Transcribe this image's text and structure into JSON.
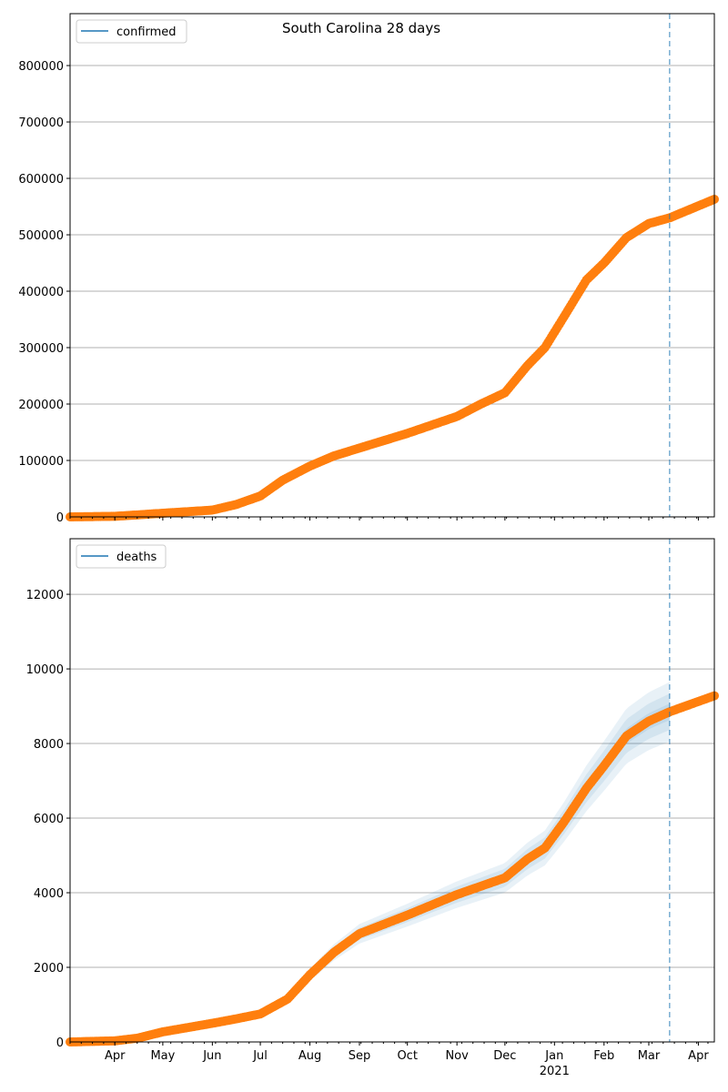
{
  "chart_data": [
    {
      "type": "scatter",
      "title": "South Carolina 28 days",
      "legend": {
        "label": "confirmed",
        "placement": "top-left",
        "color": "#1f77b4"
      },
      "marker_color": "#ff7f0e",
      "forecast_line_color": "#1f77b4",
      "x_start": "2020-03-04",
      "x_end": "2021-04-11",
      "forecast_date": "2021-03-14",
      "ylim": [
        0,
        892000
      ],
      "yticks": [
        0,
        100000,
        200000,
        300000,
        400000,
        500000,
        600000,
        700000,
        800000
      ],
      "grid": true,
      "points": [
        [
          "2020-03-04",
          0
        ],
        [
          "2020-04-01",
          1000
        ],
        [
          "2020-04-15",
          3500
        ],
        [
          "2020-05-01",
          6500
        ],
        [
          "2020-06-01",
          12000
        ],
        [
          "2020-06-16",
          22000
        ],
        [
          "2020-07-01",
          37000
        ],
        [
          "2020-07-15",
          65000
        ],
        [
          "2020-08-01",
          90000
        ],
        [
          "2020-08-16",
          108000
        ],
        [
          "2020-09-01",
          122000
        ],
        [
          "2020-10-01",
          148000
        ],
        [
          "2020-11-01",
          178000
        ],
        [
          "2020-11-16",
          200000
        ],
        [
          "2020-12-01",
          220000
        ],
        [
          "2020-12-15",
          268000
        ],
        [
          "2020-12-26",
          300000
        ],
        [
          "2021-01-07",
          355000
        ],
        [
          "2021-01-21",
          420000
        ],
        [
          "2021-02-01",
          450000
        ],
        [
          "2021-02-15",
          495000
        ],
        [
          "2021-03-01",
          520000
        ],
        [
          "2021-03-14",
          530000
        ],
        [
          "2021-04-11",
          563000
        ]
      ]
    },
    {
      "type": "scatter",
      "title": "",
      "legend": {
        "label": "deaths",
        "placement": "top-left",
        "color": "#1f77b4"
      },
      "marker_color": "#ff7f0e",
      "forecast_line_color": "#1f77b4",
      "band_color": "#1f77b4",
      "band_start": "2020-07-01",
      "band_fractions": [
        0.09,
        0.055,
        0.025
      ],
      "x_start": "2020-03-04",
      "x_end": "2021-04-11",
      "forecast_date": "2021-03-14",
      "ylim": [
        0,
        13490
      ],
      "yticks": [
        0,
        2000,
        4000,
        6000,
        8000,
        10000,
        12000
      ],
      "grid": true,
      "points": [
        [
          "2020-03-04",
          0
        ],
        [
          "2020-04-01",
          30
        ],
        [
          "2020-04-15",
          100
        ],
        [
          "2020-05-01",
          270
        ],
        [
          "2020-06-01",
          500
        ],
        [
          "2020-06-16",
          620
        ],
        [
          "2020-07-01",
          750
        ],
        [
          "2020-07-18",
          1150
        ],
        [
          "2020-08-01",
          1800
        ],
        [
          "2020-08-16",
          2400
        ],
        [
          "2020-09-01",
          2900
        ],
        [
          "2020-10-01",
          3400
        ],
        [
          "2020-11-01",
          3950
        ],
        [
          "2020-12-01",
          4400
        ],
        [
          "2020-12-15",
          4900
        ],
        [
          "2020-12-26",
          5200
        ],
        [
          "2021-01-07",
          5900
        ],
        [
          "2021-01-21",
          6800
        ],
        [
          "2021-02-01",
          7400
        ],
        [
          "2021-02-15",
          8200
        ],
        [
          "2021-03-01",
          8600
        ],
        [
          "2021-03-14",
          8850
        ],
        [
          "2021-04-11",
          9280
        ]
      ]
    }
  ],
  "x_tick_labels": [
    "Apr",
    "May",
    "Jun",
    "Jul",
    "Aug",
    "Sep",
    "Oct",
    "Nov",
    "Dec",
    "Jan",
    "Feb",
    "Mar",
    "Apr"
  ],
  "x_tick_dates": [
    "2020-04-01",
    "2020-05-01",
    "2020-06-01",
    "2020-07-01",
    "2020-08-01",
    "2020-09-01",
    "2020-10-01",
    "2020-11-01",
    "2020-12-01",
    "2021-01-01",
    "2021-02-01",
    "2021-03-01",
    "2021-04-01"
  ],
  "x_year_label": "2021"
}
